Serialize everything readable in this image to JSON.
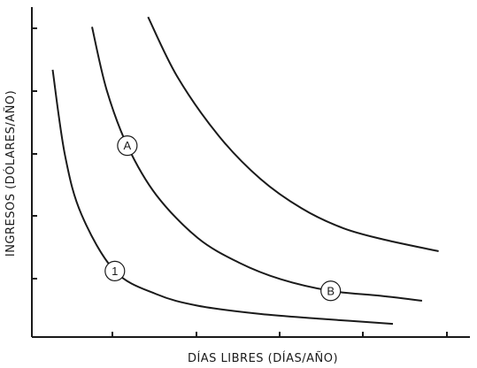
{
  "chart_data": {
    "type": "line",
    "xlabel": "DÍAS LIBRES (DÍAS/AÑO)",
    "ylabel": "INGRESOS (DÓLARES/AÑO)",
    "xlim": [
      0,
      100
    ],
    "ylim": [
      0,
      100
    ],
    "x_ticks": [
      20,
      40,
      60,
      80,
      100
    ],
    "y_ticks": [
      20,
      40,
      60,
      80,
      100
    ],
    "x_tick_labels_shown": false,
    "y_tick_labels_shown": false,
    "grid": false,
    "series": [
      {
        "points": [
          [
            5,
            81
          ],
          [
            8,
            55
          ],
          [
            12,
            37
          ],
          [
            20,
            20
          ],
          [
            30,
            13
          ],
          [
            40,
            9.5
          ],
          [
            55,
            7
          ],
          [
            70,
            5.5
          ],
          [
            87,
            4
          ]
        ]
      },
      {
        "points": [
          [
            14.5,
            94
          ],
          [
            18,
            75
          ],
          [
            23,
            58
          ],
          [
            30,
            43
          ],
          [
            40,
            30
          ],
          [
            50,
            22.5
          ],
          [
            60,
            17.5
          ],
          [
            72,
            14
          ],
          [
            84,
            12.5
          ],
          [
            94,
            11
          ]
        ]
      },
      {
        "points": [
          [
            28,
            97
          ],
          [
            35,
            79
          ],
          [
            45,
            61
          ],
          [
            55,
            48
          ],
          [
            65,
            39
          ],
          [
            75,
            33
          ],
          [
            85,
            29.5
          ],
          [
            98,
            26
          ]
        ]
      }
    ],
    "annotations": [
      {
        "text": "1",
        "x": 20,
        "y": 20
      },
      {
        "text": "A",
        "x": 23,
        "y": 58
      },
      {
        "text": "B",
        "x": 72,
        "y": 14
      }
    ]
  }
}
